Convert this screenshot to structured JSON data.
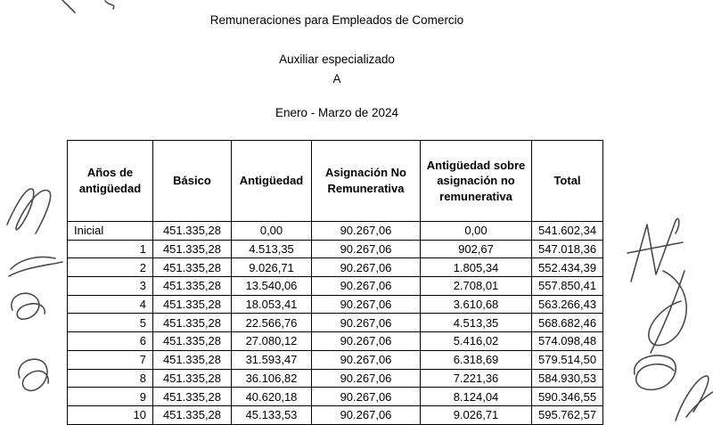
{
  "header": {
    "title": "Remuneraciones para Empleados de Comercio",
    "subtitle": "Auxiliar especializado",
    "category": "A",
    "period": "Enero - Marzo de 2024"
  },
  "table": {
    "columns": [
      "Años de antigüedad",
      "Básico",
      "Antigüedad",
      "Asignación No Remunerativa",
      "Antigüedad sobre asignación no remunerativa",
      "Total"
    ],
    "rows": [
      [
        "Inicial",
        "451.335,28",
        "0,00",
        "90.267,06",
        "0,00",
        "541.602,34"
      ],
      [
        "1",
        "451.335,28",
        "4.513,35",
        "90.267,06",
        "902,67",
        "547.018,36"
      ],
      [
        "2",
        "451.335,28",
        "9.026,71",
        "90.267,06",
        "1.805,34",
        "552.434,39"
      ],
      [
        "3",
        "451.335,28",
        "13.540,06",
        "90.267,06",
        "2.708,01",
        "557.850,41"
      ],
      [
        "4",
        "451.335,28",
        "18.053,41",
        "90.267,06",
        "3.610,68",
        "563.266,43"
      ],
      [
        "5",
        "451.335,28",
        "22.566,76",
        "90.267,06",
        "4.513,35",
        "568.682,46"
      ],
      [
        "6",
        "451.335,28",
        "27.080,12",
        "90.267,06",
        "5.416,02",
        "574.098,48"
      ],
      [
        "7",
        "451.335,28",
        "31.593,47",
        "90.267,06",
        "6.318,69",
        "579.514,50"
      ],
      [
        "8",
        "451.335,28",
        "36.106,82",
        "90.267,06",
        "7.221,36",
        "584.930,53"
      ],
      [
        "9",
        "451.335,28",
        "40.620,18",
        "90.267,06",
        "8.124,04",
        "590.346,55"
      ],
      [
        "10",
        "451.335,28",
        "45.133,53",
        "90.267,06",
        "9.026,71",
        "595.762,57"
      ]
    ]
  },
  "decorations": {
    "signatures": "handwritten ink scribbles and signatures in the left and right page margins"
  }
}
